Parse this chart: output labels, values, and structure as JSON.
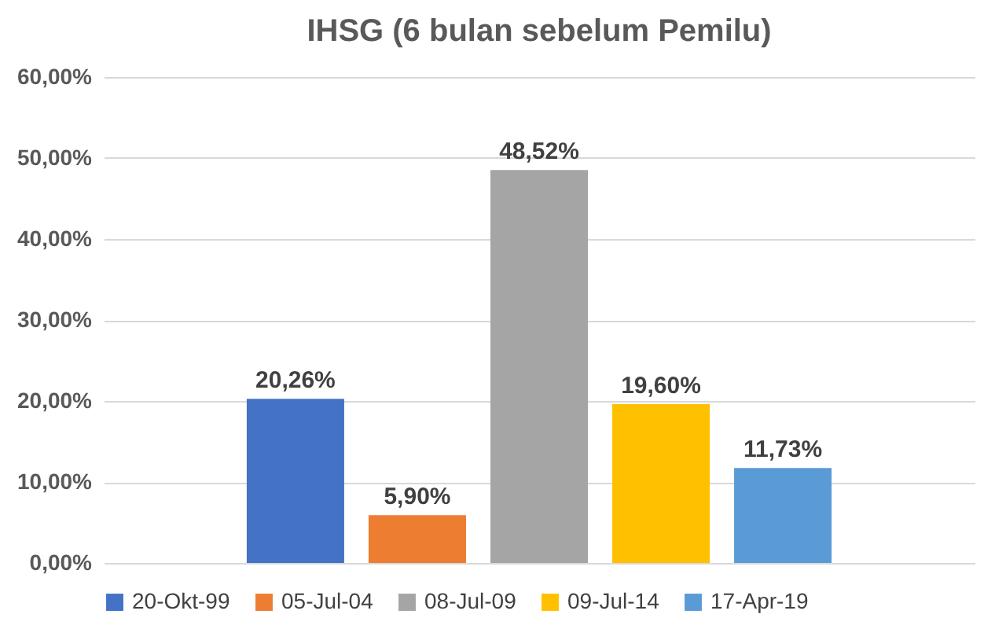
{
  "chart_data": {
    "type": "bar",
    "title": "IHSG (6 bulan sebelum Pemilu)",
    "categories": [
      null
    ],
    "series": [
      {
        "name": "20-Okt-99",
        "color": "#4472c4",
        "values": [
          20.26
        ],
        "value_labels": [
          "20,26%"
        ]
      },
      {
        "name": "05-Jul-04",
        "color": "#ed7d31",
        "values": [
          5.9
        ],
        "value_labels": [
          "5,90%"
        ]
      },
      {
        "name": "08-Jul-09",
        "color": "#a5a5a5",
        "values": [
          48.52
        ],
        "value_labels": [
          "48,52%"
        ]
      },
      {
        "name": "09-Jul-14",
        "color": "#ffc000",
        "values": [
          19.6
        ],
        "value_labels": [
          "19,60%"
        ]
      },
      {
        "name": "17-Apr-19",
        "color": "#5b9bd5",
        "values": [
          11.73
        ],
        "value_labels": [
          "11,73%"
        ]
      }
    ],
    "ylim": [
      0,
      60
    ],
    "yticks": [
      {
        "value": 0,
        "label": "0,00%"
      },
      {
        "value": 10,
        "label": "10,00%"
      },
      {
        "value": 20,
        "label": "20,00%"
      },
      {
        "value": 30,
        "label": "30,00%"
      },
      {
        "value": 40,
        "label": "40,00%"
      },
      {
        "value": 50,
        "label": "50,00%"
      },
      {
        "value": 60,
        "label": "60,00%"
      }
    ],
    "grid": "y",
    "legend": "bottom",
    "tick_labels": "y"
  }
}
